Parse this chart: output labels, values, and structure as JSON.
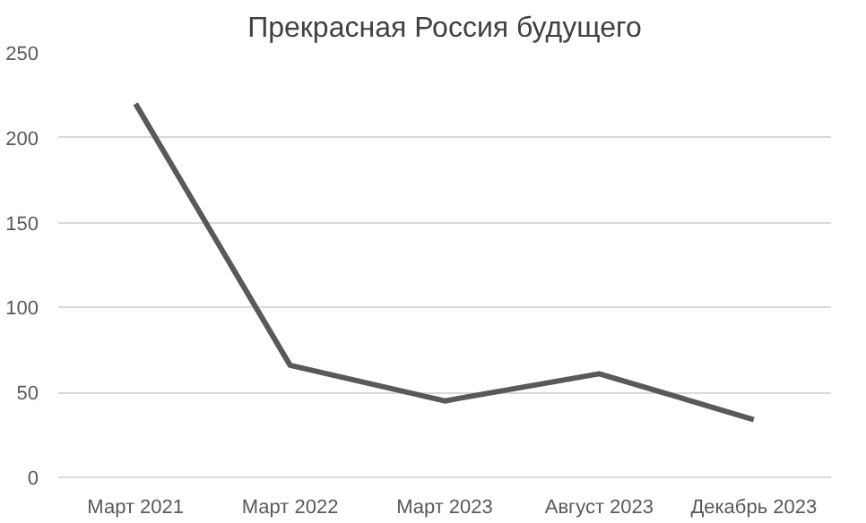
{
  "chart_data": {
    "type": "line",
    "title": "Прекрасная Россия будущего",
    "categories": [
      "Март 2021",
      "Март 2022",
      "Март 2023",
      "Август 2023",
      "Декабрь 2023"
    ],
    "series": [
      {
        "color": "#595959",
        "values": [
          220,
          66,
          45,
          61,
          34
        ]
      }
    ],
    "ylim": [
      0,
      250
    ],
    "yticks": [
      0,
      50,
      100,
      150,
      200,
      250
    ],
    "grid": "y",
    "marker": "none",
    "line_style": "solid"
  }
}
